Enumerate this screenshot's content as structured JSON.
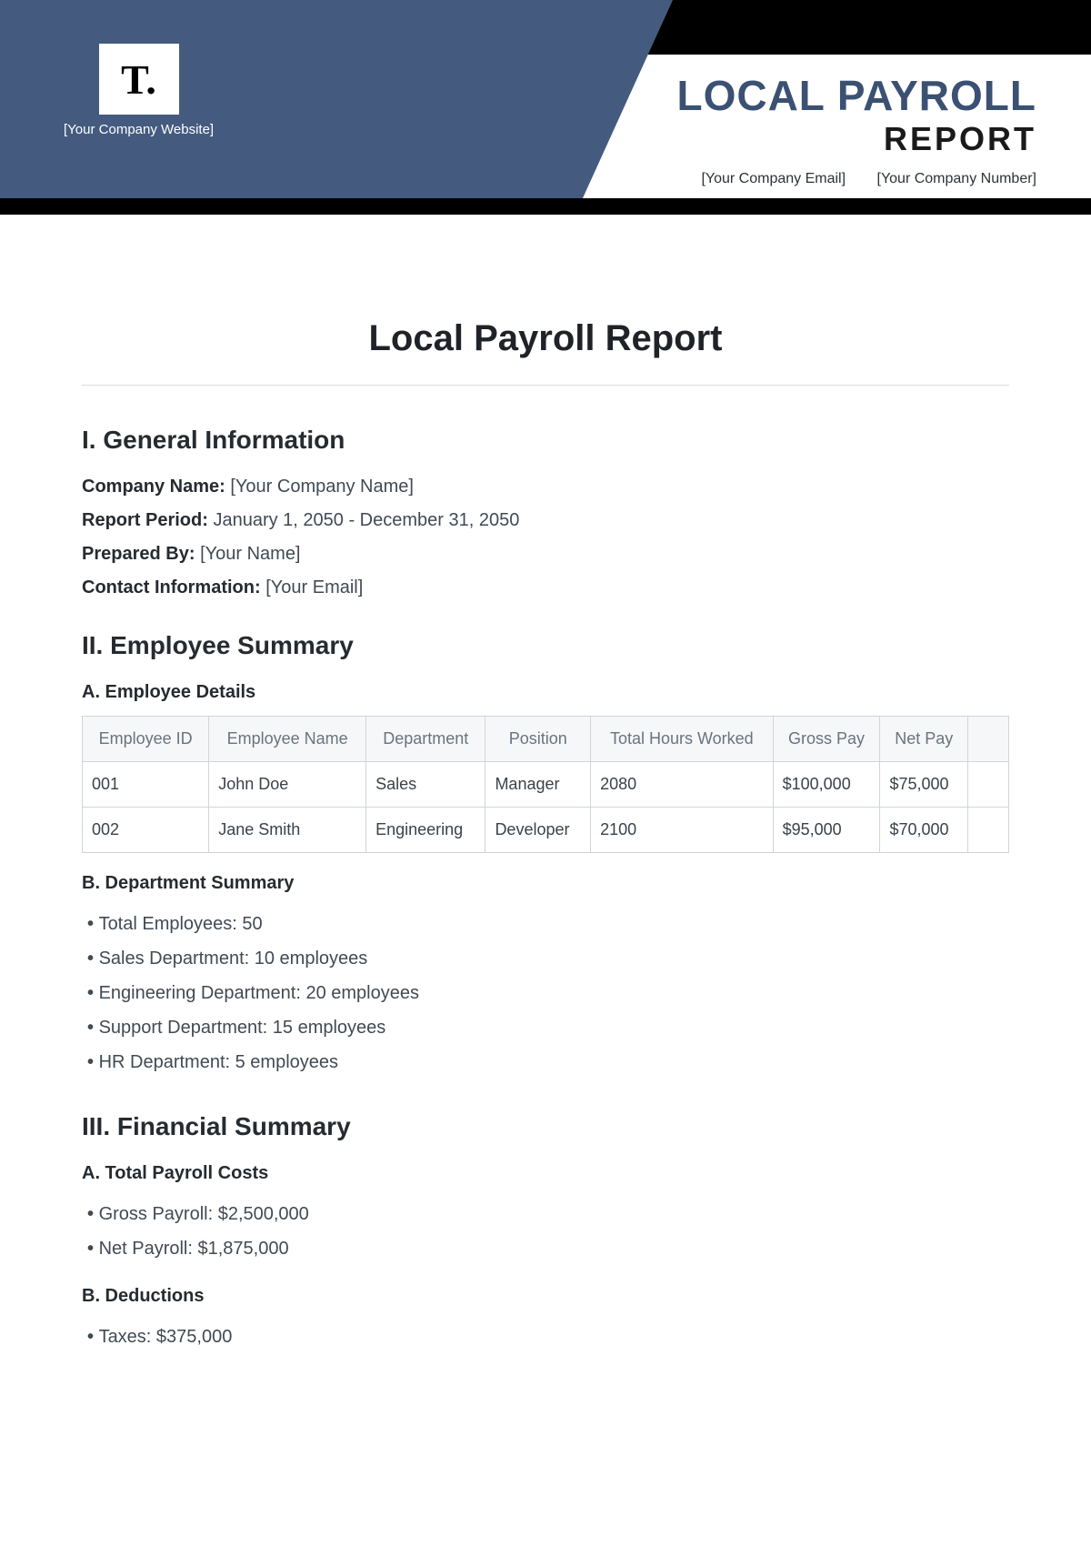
{
  "header": {
    "logo_text": "T.",
    "company_website": "[Your Company Website]",
    "title_line1": "LOCAL PAYROLL",
    "title_line2": "REPORT",
    "company_email": "[Your Company Email]",
    "company_number": "[Your Company Number]",
    "colors": {
      "banner": "#445b7f",
      "accent": "#3b5173",
      "black": "#000000"
    }
  },
  "document": {
    "title": "Local Payroll Report"
  },
  "section1": {
    "heading": "I. General Information",
    "company_name_label": "Company Name:",
    "company_name_value": "[Your Company Name]",
    "report_period_label": "Report Period:",
    "report_period_value": "January 1, 2050 - December 31, 2050",
    "prepared_by_label": "Prepared By:",
    "prepared_by_value": "[Your Name]",
    "contact_label": "Contact Information:",
    "contact_value": "[Your Email]"
  },
  "section2": {
    "heading": "II. Employee Summary",
    "sub_a": "A. Employee Details",
    "table": {
      "columns": [
        "Employee ID",
        "Employee Name",
        "Department",
        "Position",
        "Total Hours Worked",
        "Gross Pay",
        "Net Pay",
        ""
      ],
      "rows": [
        [
          "001",
          "John Doe",
          "Sales",
          "Manager",
          "2080",
          "$100,000",
          "$75,000",
          ""
        ],
        [
          "002",
          "Jane Smith",
          "Engineering",
          "Developer",
          "2100",
          "$95,000",
          "$70,000",
          ""
        ]
      ]
    },
    "sub_b": "B. Department Summary",
    "dept_items": [
      "Total Employees: 50",
      "Sales Department: 10 employees",
      "Engineering Department: 20 employees",
      "Support Department: 15 employees",
      "HR Department: 5 employees"
    ]
  },
  "section3": {
    "heading": "III. Financial Summary",
    "sub_a": "A. Total Payroll Costs",
    "costs_items": [
      "Gross Payroll: $2,500,000",
      "Net Payroll: $1,875,000"
    ],
    "sub_b": "B. Deductions",
    "deduction_items": [
      "Taxes: $375,000"
    ]
  }
}
